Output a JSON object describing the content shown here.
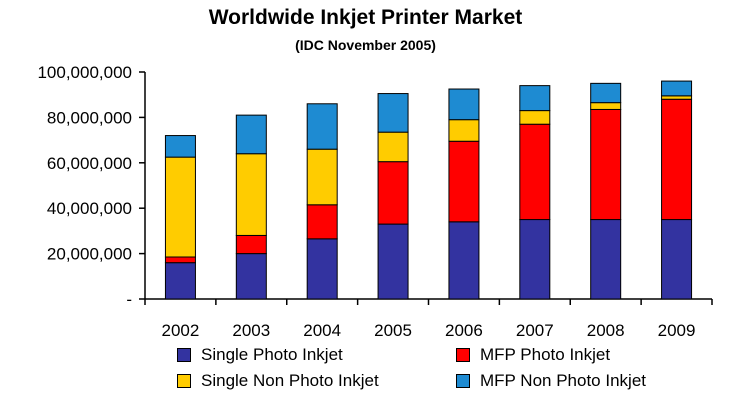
{
  "chart_data": {
    "type": "bar",
    "stacked": true,
    "title": "Worldwide Inkjet Printer Market",
    "subtitle": "(IDC November 2005)",
    "categories": [
      "2002",
      "2003",
      "2004",
      "2005",
      "2006",
      "2007",
      "2008",
      "2009"
    ],
    "ylim": [
      0,
      100000000
    ],
    "yticks": [
      {
        "value": 0,
        "label": "-"
      },
      {
        "value": 20000000,
        "label": "20,000,000"
      },
      {
        "value": 40000000,
        "label": "40,000,000"
      },
      {
        "value": 60000000,
        "label": "60,000,000"
      },
      {
        "value": 80000000,
        "label": "80,000,000"
      },
      {
        "value": 100000000,
        "label": "100,000,000"
      }
    ],
    "grid": false,
    "legend_position": "bottom",
    "series": [
      {
        "name": "Single Photo Inkjet",
        "color": "#3333a0",
        "values": [
          16000000,
          20000000,
          26500000,
          33000000,
          34000000,
          35000000,
          35000000,
          35000000
        ]
      },
      {
        "name": "MFP Photo Inkjet",
        "color": "#ff0000",
        "values": [
          2500000,
          8000000,
          15000000,
          27500000,
          35500000,
          42000000,
          48500000,
          53000000
        ]
      },
      {
        "name": "Single Non Photo Inkjet",
        "color": "#ffcc00",
        "values": [
          44000000,
          36000000,
          24500000,
          13000000,
          9500000,
          6000000,
          3000000,
          1500000
        ]
      },
      {
        "name": "MFP Non Photo Inkjet",
        "color": "#1e8bd2",
        "values": [
          9500000,
          17000000,
          20000000,
          17000000,
          13500000,
          11000000,
          8500000,
          6500000
        ]
      }
    ]
  },
  "legend": {
    "items": [
      {
        "label": "Single Photo Inkjet",
        "color": "#3333a0"
      },
      {
        "label": "MFP Photo Inkjet",
        "color": "#ff0000"
      },
      {
        "label": "Single Non Photo Inkjet",
        "color": "#ffcc00"
      },
      {
        "label": "MFP Non Photo Inkjet",
        "color": "#1e8bd2"
      }
    ]
  }
}
